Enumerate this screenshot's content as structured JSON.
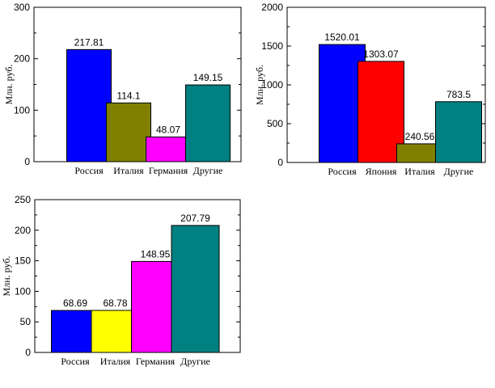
{
  "chart_data": [
    {
      "type": "bar",
      "categories": [
        "Россия",
        "Италия",
        "Германия",
        "Другие"
      ],
      "values": [
        217.81,
        114.1,
        48.07,
        149.15
      ],
      "value_labels": [
        "217.81",
        "114.1",
        "48.07",
        "149.15"
      ],
      "colors": [
        "#0000ff",
        "#808000",
        "#ff00ff",
        "#008080"
      ],
      "ylabel": "Млн. руб.",
      "ylim": [
        0,
        300
      ],
      "yticks": [
        0,
        100,
        200,
        300
      ],
      "ytick_labels": [
        "0",
        "100",
        "200",
        "300"
      ],
      "grid": false
    },
    {
      "type": "bar",
      "categories": [
        "Россия",
        "Япония",
        "Италия",
        "Другие"
      ],
      "values": [
        1520.01,
        1303.07,
        240.56,
        783.5
      ],
      "value_labels": [
        "1520.01",
        "1303.07",
        "240.56",
        "783.5"
      ],
      "colors": [
        "#0000ff",
        "#ff0000",
        "#808000",
        "#008080"
      ],
      "ylabel": "Млн. руб.",
      "ylim": [
        0,
        2000
      ],
      "yticks": [
        0,
        500,
        1000,
        1500,
        2000
      ],
      "ytick_labels": [
        "0",
        "500",
        "1000",
        "1500",
        "2000"
      ],
      "grid": false
    },
    {
      "type": "bar",
      "categories": [
        "Россия",
        "Италия",
        "Германия",
        "Другие"
      ],
      "values": [
        68.69,
        68.78,
        148.95,
        207.79
      ],
      "value_labels": [
        "68.69",
        "68.78",
        "148.95",
        "207.79"
      ],
      "colors": [
        "#0000ff",
        "#ffff00",
        "#ff00ff",
        "#008080"
      ],
      "ylabel": "Млн. руб.",
      "ylim": [
        0,
        250
      ],
      "yticks": [
        0,
        50,
        100,
        150,
        200,
        250
      ],
      "ytick_labels": [
        "0",
        "50",
        "100",
        "150",
        "200",
        "250"
      ],
      "grid": false
    }
  ]
}
